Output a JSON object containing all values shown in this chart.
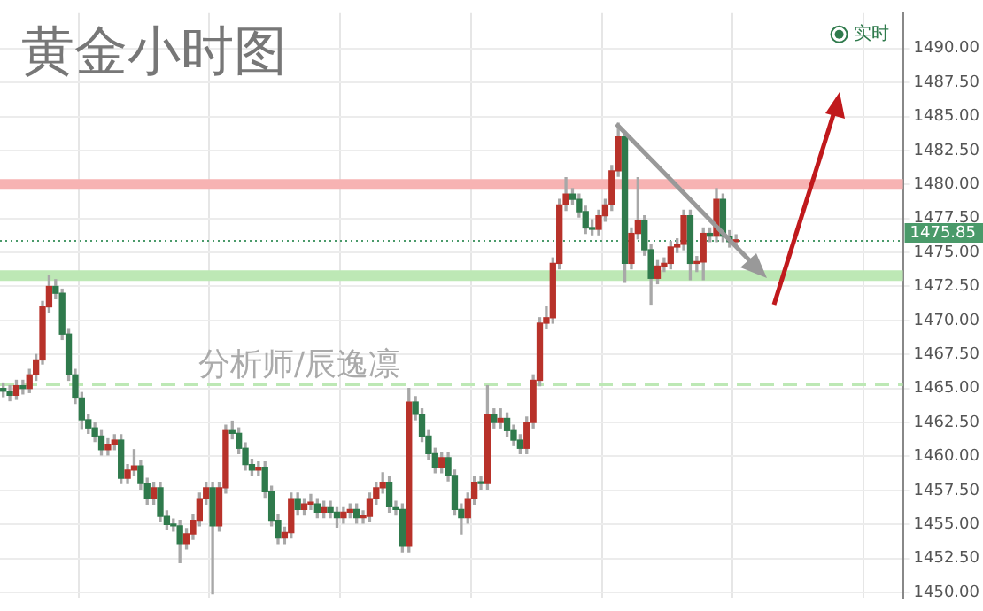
{
  "chart_data": {
    "type": "candlestick",
    "title": "黄金小时图",
    "annotations": [
      "分析师/辰逸凛"
    ],
    "categories": [
      null,
      null,
      null,
      null,
      null,
      null,
      null,
      null,
      null,
      null,
      null,
      null,
      null,
      null,
      null,
      null,
      null,
      null,
      null,
      null,
      null,
      null,
      null,
      null,
      null,
      null,
      null,
      null,
      null,
      null,
      null,
      null,
      null,
      null,
      null,
      null,
      null,
      null,
      null,
      null,
      null,
      null,
      null,
      null,
      null,
      null,
      null,
      null,
      null,
      null,
      null,
      null,
      null,
      null,
      null,
      null,
      null,
      null,
      null,
      null,
      null,
      null,
      null,
      null,
      null,
      null,
      null,
      null,
      null,
      null,
      null,
      null,
      null,
      null,
      null,
      null,
      null,
      null,
      null,
      null,
      null,
      null,
      null,
      null,
      null,
      null,
      null,
      null,
      null,
      null,
      null,
      null,
      null,
      null,
      null,
      null,
      null,
      null,
      null,
      null,
      null,
      null,
      null,
      null,
      null,
      null,
      null,
      null,
      null,
      null,
      null,
      null,
      null,
      null,
      null,
      null,
      null,
      null,
      null,
      null,
      null,
      null,
      null,
      null,
      null,
      null,
      null,
      null,
      null,
      null,
      null,
      null,
      null,
      null,
      null,
      null,
      null,
      null
    ],
    "series": [
      {
        "name": "实时",
        "color": "#2f7a4c",
        "colors": [
          "#2f7a4c",
          "#2f7a4c",
          "#b8322a",
          "#2f7a4c",
          "#b8322a",
          "#b8322a",
          "#b8322a",
          "#b8322a",
          "#2f7a4c",
          "#2f7a4c",
          "#2f7a4c",
          "#2f7a4c",
          "#2f7a4c",
          "#2f7a4c",
          "#2f7a4c",
          "#2f7a4c",
          "#b8322a",
          "#b8322a",
          "#2f7a4c",
          "#b8322a",
          "#b8322a",
          "#2f7a4c",
          "#2f7a4c",
          "#b8322a",
          "#2f7a4c",
          "#2f7a4c",
          "#2f7a4c",
          "#2f7a4c",
          "#b8322a",
          "#b8322a",
          "#b8322a",
          "#b8322a",
          "#2f7a4c",
          "#b8322a",
          "#b8322a",
          "#2f7a4c",
          "#2f7a4c",
          "#2f7a4c",
          "#2f7a4c",
          "#b8322a",
          "#2f7a4c",
          "#2f7a4c",
          "#2f7a4c",
          "#b8322a",
          "#b8322a",
          "#2f7a4c",
          "#b8322a",
          "#b8322a",
          "#2f7a4c",
          "#b8322a",
          "#2f7a4c",
          "#2f7a4c",
          "#b8322a",
          "#b8322a",
          "#2f7a4c",
          "#b8322a",
          "#b8322a",
          "#b8322a",
          "#b8322a",
          "#2f7a4c",
          "#2f7a4c",
          "#2f7a4c",
          "#b8322a",
          "#2f7a4c",
          "#2f7a4c",
          "#2f7a4c",
          "#2f7a4c",
          "#b8322a",
          "#2f7a4c",
          "#2f7a4c",
          "#2f7a4c",
          "#b8322a",
          "#b8322a",
          "#2f7a4c",
          "#b8322a",
          "#2f7a4c",
          "#b8322a",
          "#2f7a4c",
          "#2f7a4c",
          "#2f7a4c",
          "#b8322a",
          "#b8322a",
          "#b8322a",
          "#b8322a",
          "#b8322a",
          "#b8322a",
          "#b8322a",
          "#2f7a4c",
          "#2f7a4c",
          "#2f7a4c",
          "#2f7a4c",
          "#b8322a",
          "#b8322a",
          "#b8322a",
          "#b8322a",
          "#2f7a4c",
          "#b8322a",
          "#b8322a",
          "#2f7a4c",
          "#2f7a4c",
          "#b8322a",
          "#b8322a",
          "#b8322a",
          "#b8322a",
          "#b8322a",
          "#2f7a4c",
          "#b8322a",
          "#b8322a",
          "#2f7a4c",
          "#b8322a",
          "#2f7a4c",
          "#2f7a4c",
          "#b8322a",
          null,
          null,
          null,
          null,
          null,
          null,
          null,
          null,
          null,
          null,
          null,
          null,
          null,
          null,
          null,
          null,
          null,
          null,
          null,
          null,
          null,
          null,
          null,
          null,
          null
        ],
        "ohlc": [
          [
            1465.0,
            1465.4,
            1464.4,
            1464.8
          ],
          [
            1464.8,
            1465.2,
            1464.1,
            1464.5
          ],
          [
            1464.5,
            1465.6,
            1464.2,
            1465.2
          ],
          [
            1465.2,
            1465.6,
            1464.6,
            1465.0
          ],
          [
            1465.0,
            1466.4,
            1464.7,
            1466.0
          ],
          [
            1466.0,
            1467.5,
            1465.6,
            1467.1
          ],
          [
            1467.1,
            1471.4,
            1466.8,
            1471.0
          ],
          [
            1471.0,
            1473.3,
            1470.6,
            1472.5
          ],
          [
            1472.5,
            1473.0,
            1471.6,
            1472.0
          ],
          [
            1472.0,
            1472.3,
            1468.6,
            1469.0
          ],
          [
            1469.0,
            1469.4,
            1465.6,
            1466.0
          ],
          [
            1466.0,
            1466.4,
            1463.9,
            1464.3
          ],
          [
            1464.3,
            1464.7,
            1462.0,
            1462.7
          ],
          [
            1462.7,
            1463.1,
            1461.7,
            1462.1
          ],
          [
            1462.1,
            1462.5,
            1461.1,
            1461.5
          ],
          [
            1461.5,
            1461.9,
            1460.1,
            1460.5
          ],
          [
            1460.5,
            1461.3,
            1460.1,
            1460.9
          ],
          [
            1460.9,
            1461.6,
            1460.5,
            1461.2
          ],
          [
            1461.2,
            1461.6,
            1458.0,
            1458.4
          ],
          [
            1458.4,
            1459.4,
            1458.0,
            1459.0
          ],
          [
            1459.0,
            1460.5,
            1458.6,
            1459.3
          ],
          [
            1459.3,
            1459.7,
            1457.6,
            1458.0
          ],
          [
            1458.0,
            1458.4,
            1456.5,
            1456.9
          ],
          [
            1456.9,
            1458.1,
            1456.5,
            1457.7
          ],
          [
            1457.7,
            1458.1,
            1455.2,
            1455.6
          ],
          [
            1455.6,
            1456.0,
            1454.6,
            1455.0
          ],
          [
            1455.0,
            1455.4,
            1454.5,
            1454.9
          ],
          [
            1454.9,
            1455.3,
            1452.2,
            1453.6
          ],
          [
            1453.6,
            1454.7,
            1453.2,
            1454.3
          ],
          [
            1454.3,
            1455.7,
            1453.9,
            1455.3
          ],
          [
            1455.3,
            1457.3,
            1454.9,
            1456.9
          ],
          [
            1456.9,
            1458.1,
            1456.5,
            1457.7
          ],
          [
            1457.7,
            1458.1,
            1449.9,
            1454.9
          ],
          [
            1454.9,
            1458.1,
            1454.5,
            1457.7
          ],
          [
            1457.7,
            1462.3,
            1457.3,
            1461.9
          ],
          [
            1461.9,
            1462.6,
            1461.3,
            1461.7
          ],
          [
            1461.7,
            1462.1,
            1460.2,
            1460.6
          ],
          [
            1460.6,
            1461.0,
            1459.0,
            1459.4
          ],
          [
            1459.4,
            1459.8,
            1458.6,
            1459.0
          ],
          [
            1459.0,
            1459.6,
            1458.6,
            1459.2
          ],
          [
            1459.2,
            1459.6,
            1457.0,
            1457.4
          ],
          [
            1457.4,
            1457.8,
            1454.9,
            1455.3
          ],
          [
            1455.3,
            1455.7,
            1453.6,
            1454.0
          ],
          [
            1454.0,
            1454.8,
            1453.6,
            1454.4
          ],
          [
            1454.4,
            1457.3,
            1454.0,
            1456.9
          ],
          [
            1456.9,
            1457.3,
            1455.7,
            1456.1
          ],
          [
            1456.1,
            1456.9,
            1455.7,
            1456.5
          ],
          [
            1456.5,
            1457.2,
            1456.1,
            1456.5
          ],
          [
            1456.5,
            1456.9,
            1455.5,
            1455.9
          ],
          [
            1455.9,
            1456.7,
            1455.5,
            1456.3
          ],
          [
            1456.3,
            1456.7,
            1455.5,
            1455.9
          ],
          [
            1455.9,
            1456.3,
            1454.8,
            1455.5
          ],
          [
            1455.5,
            1456.3,
            1455.1,
            1455.9
          ],
          [
            1455.9,
            1456.5,
            1455.5,
            1456.1
          ],
          [
            1456.1,
            1456.5,
            1455.1,
            1455.5
          ],
          [
            1455.5,
            1456.0,
            1455.1,
            1455.6
          ],
          [
            1455.6,
            1457.3,
            1455.2,
            1456.9
          ],
          [
            1456.9,
            1458.1,
            1456.5,
            1457.7
          ],
          [
            1457.7,
            1458.8,
            1457.3,
            1458.1
          ],
          [
            1458.1,
            1458.5,
            1455.9,
            1456.3
          ],
          [
            1456.3,
            1456.7,
            1455.7,
            1456.1
          ],
          [
            1456.1,
            1456.5,
            1453.0,
            1453.4
          ],
          [
            1453.4,
            1465.0,
            1453.0,
            1464.0
          ],
          [
            1464.0,
            1464.4,
            1462.7,
            1463.1
          ],
          [
            1463.1,
            1463.5,
            1461.1,
            1461.5
          ],
          [
            1461.5,
            1461.9,
            1459.8,
            1460.2
          ],
          [
            1460.2,
            1460.6,
            1458.8,
            1459.2
          ],
          [
            1459.2,
            1460.3,
            1458.8,
            1459.9
          ],
          [
            1459.9,
            1460.3,
            1458.2,
            1458.6
          ],
          [
            1458.6,
            1459.0,
            1455.7,
            1456.1
          ],
          [
            1456.1,
            1456.5,
            1454.3,
            1455.5
          ],
          [
            1455.5,
            1457.3,
            1455.1,
            1456.9
          ],
          [
            1456.9,
            1458.5,
            1456.5,
            1458.1
          ],
          [
            1458.1,
            1458.5,
            1457.6,
            1458.0
          ],
          [
            1458.0,
            1465.2,
            1457.6,
            1463.1
          ],
          [
            1463.1,
            1463.5,
            1462.1,
            1462.5
          ],
          [
            1462.5,
            1463.5,
            1462.1,
            1462.8
          ],
          [
            1462.8,
            1463.2,
            1461.5,
            1461.9
          ],
          [
            1461.9,
            1462.3,
            1460.8,
            1461.2
          ],
          [
            1461.2,
            1461.6,
            1460.2,
            1460.6
          ],
          [
            1460.6,
            1462.9,
            1460.2,
            1462.5
          ],
          [
            1462.5,
            1466.0,
            1462.1,
            1465.6
          ],
          [
            1465.6,
            1470.2,
            1465.2,
            1469.8
          ],
          [
            1469.8,
            1471.0,
            1469.4,
            1470.2
          ],
          [
            1470.2,
            1474.6,
            1469.8,
            1474.2
          ],
          [
            1474.2,
            1478.9,
            1473.8,
            1478.5
          ],
          [
            1478.5,
            1480.5,
            1478.1,
            1479.3
          ],
          [
            1479.3,
            1479.7,
            1478.5,
            1478.9
          ],
          [
            1478.9,
            1479.3,
            1477.6,
            1478.0
          ],
          [
            1478.0,
            1478.4,
            1476.4,
            1476.8
          ],
          [
            1476.8,
            1477.4,
            1476.3,
            1476.7
          ],
          [
            1476.7,
            1478.1,
            1476.3,
            1477.7
          ],
          [
            1477.7,
            1478.9,
            1477.3,
            1478.5
          ],
          [
            1478.5,
            1481.4,
            1478.1,
            1481.0
          ],
          [
            1481.0,
            1484.5,
            1480.6,
            1483.5
          ],
          [
            1483.5,
            1483.9,
            1472.8,
            1474.2
          ],
          [
            1474.2,
            1476.8,
            1473.8,
            1476.4
          ],
          [
            1476.4,
            1480.5,
            1476.0,
            1477.3
          ],
          [
            1477.3,
            1477.7,
            1474.8,
            1475.2
          ],
          [
            1475.2,
            1475.6,
            1471.2,
            1473.1
          ],
          [
            1473.1,
            1474.4,
            1472.7,
            1474.0
          ],
          [
            1474.0,
            1474.6,
            1473.6,
            1474.2
          ],
          [
            1474.2,
            1475.8,
            1473.8,
            1475.4
          ],
          [
            1475.4,
            1476.0,
            1475.0,
            1475.6
          ],
          [
            1475.6,
            1478.1,
            1475.2,
            1477.7
          ],
          [
            1477.7,
            1478.1,
            1473.0,
            1474.2
          ],
          [
            1474.2,
            1474.7,
            1473.6,
            1474.3
          ],
          [
            1474.3,
            1476.8,
            1473.0,
            1476.4
          ],
          [
            1476.4,
            1476.8,
            1475.8,
            1476.2
          ],
          [
            1476.2,
            1479.7,
            1475.8,
            1478.9
          ],
          [
            1478.9,
            1479.3,
            1475.8,
            1476.2
          ],
          [
            1476.2,
            1476.6,
            1475.4,
            1475.8
          ],
          [
            1475.8,
            1476.3,
            1475.4,
            1475.85
          ],
          null,
          null,
          null,
          null,
          null,
          null,
          null,
          null,
          null,
          null,
          null,
          null,
          null,
          null,
          null,
          null,
          null,
          null,
          null,
          null,
          null,
          null,
          null,
          null,
          null
        ]
      }
    ],
    "ylim": [
      1449.6,
      1492.6
    ],
    "yticks": [
      {
        "value": 1450,
        "label": "1450.00"
      },
      {
        "value": 1452.5,
        "label": "1452.50"
      },
      {
        "value": 1455,
        "label": "1455.00"
      },
      {
        "value": 1457.5,
        "label": "1457.50"
      },
      {
        "value": 1460,
        "label": "1460.00"
      },
      {
        "value": 1462.5,
        "label": "1462.50"
      },
      {
        "value": 1465,
        "label": "1465.00"
      },
      {
        "value": 1467.5,
        "label": "1467.50"
      },
      {
        "value": 1470,
        "label": "1470.00"
      },
      {
        "value": 1472.5,
        "label": "1472.50"
      },
      {
        "value": 1475,
        "label": "1475.00"
      },
      {
        "value": 1477.5,
        "label": "1477.50"
      },
      {
        "value": 1480,
        "label": "1480.00"
      },
      {
        "value": 1482.5,
        "label": "1482.50"
      },
      {
        "value": 1485,
        "label": "1485.00"
      },
      {
        "value": 1487.5,
        "label": "1487.50"
      },
      {
        "value": 1490,
        "label": "1490.00"
      }
    ],
    "ref_lines": [
      {
        "axis": "y",
        "value": 1480,
        "color": "#f7b3b3",
        "line_style": "solid"
      },
      {
        "axis": "y",
        "value": 1473.3,
        "color": "#bde8b5",
        "line_style": "solid"
      },
      {
        "axis": "y",
        "value": 1465.3,
        "color": "#bde8b5",
        "line_style": "dashed"
      },
      {
        "axis": "y",
        "value": 1475.85,
        "color": "#4a9a6a",
        "line_style": "dotted",
        "label": "1475.85"
      }
    ],
    "grid": true,
    "legend": "top right",
    "tick_labels": "y"
  }
}
